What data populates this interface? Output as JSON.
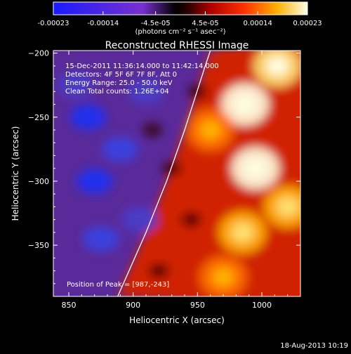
{
  "colorbar": {
    "ticks": [
      "-0.00023",
      "-0.00014",
      "-4.5e-05",
      "4.5e-05",
      "0.00014",
      "0.00023"
    ],
    "unit_label": "(photons cm⁻² s⁻¹ asec⁻²)",
    "range": [
      -0.00023,
      0.00023
    ]
  },
  "chart_data": {
    "type": "heatmap",
    "title": "Reconstructed RHESSI Image",
    "xlabel": "Heliocentric X (arcsec)",
    "ylabel": "Heliocentric Y (arcsec)",
    "xlim": [
      838,
      1030
    ],
    "ylim": [
      -390,
      -198
    ],
    "xticks": [
      850,
      900,
      950,
      1000
    ],
    "yticks": [
      -200,
      -250,
      -300,
      -350
    ],
    "limb_curve": [
      [
        888,
        -390
      ],
      [
        910,
        -340
      ],
      [
        926,
        -300
      ],
      [
        940,
        -260
      ],
      [
        956,
        -210
      ],
      [
        960,
        -198
      ]
    ],
    "peak": [
      987,
      -243
    ],
    "bright_blobs": [
      {
        "x": 987,
        "y": -240,
        "value": 0.00023
      },
      {
        "x": 995,
        "y": -290,
        "value": 0.00021
      },
      {
        "x": 985,
        "y": -340,
        "value": 0.00018
      },
      {
        "x": 960,
        "y": -260,
        "value": 0.00015
      },
      {
        "x": 1012,
        "y": -210,
        "value": 0.0002
      },
      {
        "x": 1020,
        "y": -320,
        "value": 0.00017
      },
      {
        "x": 970,
        "y": -375,
        "value": 0.00016
      }
    ],
    "dark_blobs": [
      {
        "x": 865,
        "y": -250,
        "value": -0.00018
      },
      {
        "x": 870,
        "y": -300,
        "value": -0.00017
      },
      {
        "x": 890,
        "y": -275,
        "value": -0.00014
      },
      {
        "x": 910,
        "y": -230,
        "value": -0.00012
      },
      {
        "x": 875,
        "y": -345,
        "value": -0.00013
      },
      {
        "x": 905,
        "y": -330,
        "value": -0.00012
      },
      {
        "x": 855,
        "y": -225,
        "value": -0.0001
      }
    ]
  },
  "annotations": {
    "line1": "15-Dec-2011 11:36:14.000 to 11:42:14.000",
    "line2": "Detectors: 4F 5F 6F 7F 8F, Att 0",
    "line3": "Energy Range: 25.0 - 50.0 keV",
    "line4": "Clean    Total counts: 1.26E+04",
    "peak_label": "Position of Peak = [987,-243]"
  },
  "footer": {
    "date": "18-Aug-2013 10:19"
  }
}
